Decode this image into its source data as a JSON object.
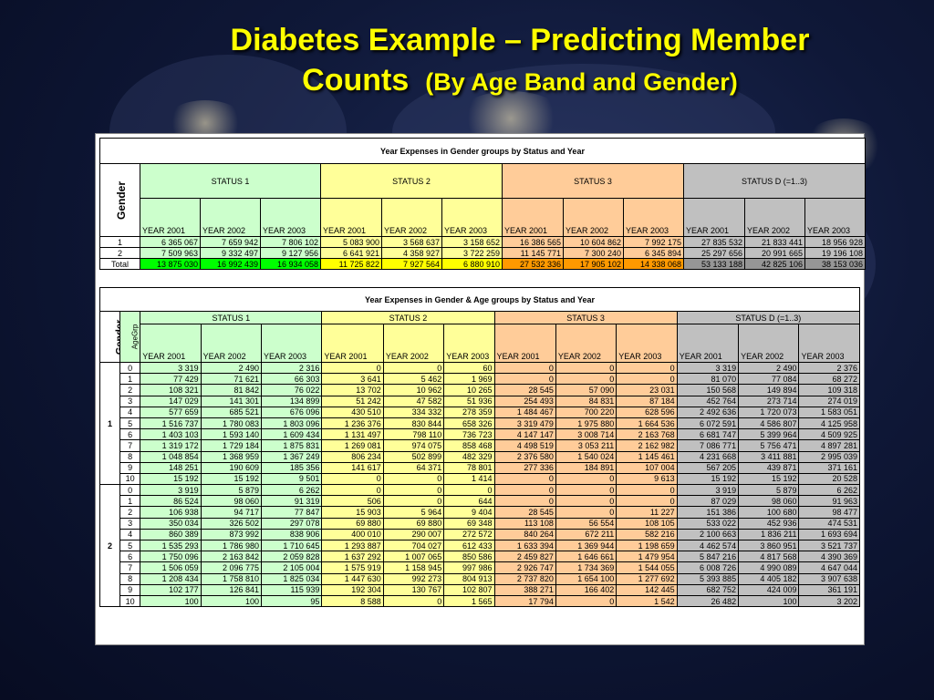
{
  "slide": {
    "title_line1": "Diabetes Example – Predicting Member",
    "title_line2": "Counts",
    "title_sub": "(By Age Band and Gender)"
  },
  "colors": {
    "title": "#ffff00",
    "status1": "#ccffcc",
    "status2": "#ffff99",
    "status3": "#ffcc99",
    "status_d": "#c0c0c0"
  },
  "table1": {
    "title": "Year Expenses in Gender groups by Status and Year",
    "gender_label": "Gender",
    "statuses": [
      "STATUS 1",
      "STATUS 2",
      "STATUS 3",
      "STATUS D (=1..3)"
    ],
    "years": [
      "YEAR 2001",
      "YEAR 2002",
      "YEAR 2003",
      "YEAR 2001",
      "YEAR 2002",
      "YEAR 2003",
      "YEAR 2001",
      "YEAR 2002",
      "YEAR 2003",
      "YEAR 2001",
      "YEAR 2002",
      "YEAR 2003"
    ],
    "rows": [
      {
        "label": "1",
        "values": [
          "6 365 067",
          "7 659 942",
          "7 806 102",
          "5 083 900",
          "3 568 637",
          "3 158 652",
          "16 386 565",
          "10 604 862",
          "7 992 175",
          "27 835 532",
          "21 833 441",
          "18 956 928"
        ]
      },
      {
        "label": "2",
        "values": [
          "7 509 963",
          "9 332 497",
          "9 127 956",
          "6 641 921",
          "4 358 927",
          "3 722 259",
          "11 145 771",
          "7 300 240",
          "6 345 894",
          "25 297 656",
          "20 991 665",
          "19 196 108"
        ]
      },
      {
        "label": "Total",
        "values": [
          "13 875 030",
          "16 992 439",
          "16 934 058",
          "11 725 822",
          "7 927 564",
          "6 880 910",
          "27 532 336",
          "17 905 102",
          "14 338 068",
          "53 133 188",
          "42 825 106",
          "38 153 036"
        ]
      }
    ]
  },
  "table2": {
    "title": "Year Expenses in Gender & Age groups by Status and Year",
    "gender_label": "Gender",
    "agegrp_label": "AgeGrp",
    "statuses": [
      "STATUS 1",
      "STATUS 2",
      "STATUS 3",
      "STATUS D (=1..3)"
    ],
    "years": [
      "YEAR 2001",
      "YEAR 2002",
      "YEAR 2003",
      "YEAR 2001",
      "YEAR 2002",
      "YEAR 2003",
      "YEAR 2001",
      "YEAR 2002",
      "YEAR 2003",
      "YEAR 2001",
      "YEAR 2002",
      "YEAR 2003"
    ],
    "groups": [
      {
        "gender": "1",
        "rows": [
          {
            "age": "0",
            "values": [
              "3 319",
              "2 490",
              "2 316",
              "0",
              "0",
              "60",
              "0",
              "0",
              "0",
              "3 319",
              "2 490",
              "2 376"
            ]
          },
          {
            "age": "1",
            "values": [
              "77 429",
              "71 621",
              "66 303",
              "3 641",
              "5 462",
              "1 969",
              "0",
              "0",
              "0",
              "81 070",
              "77 084",
              "68 272"
            ]
          },
          {
            "age": "2",
            "values": [
              "108 321",
              "81 842",
              "76 022",
              "13 702",
              "10 962",
              "10 265",
              "28 545",
              "57 090",
              "23 031",
              "150 568",
              "149 894",
              "109 318"
            ]
          },
          {
            "age": "3",
            "values": [
              "147 029",
              "141 301",
              "134 899",
              "51 242",
              "47 582",
              "51 936",
              "254 493",
              "84 831",
              "87 184",
              "452 764",
              "273 714",
              "274 019"
            ]
          },
          {
            "age": "4",
            "values": [
              "577 659",
              "685 521",
              "676 096",
              "430 510",
              "334 332",
              "278 359",
              "1 484 467",
              "700 220",
              "628 596",
              "2 492 636",
              "1 720 073",
              "1 583 051"
            ]
          },
          {
            "age": "5",
            "values": [
              "1 516 737",
              "1 780 083",
              "1 803 096",
              "1 236 376",
              "830 844",
              "658 326",
              "3 319 479",
              "1 975 880",
              "1 664 536",
              "6 072 591",
              "4 586 807",
              "4 125 958"
            ]
          },
          {
            "age": "6",
            "values": [
              "1 403 103",
              "1 593 140",
              "1 609 434",
              "1 131 497",
              "798 110",
              "736 723",
              "4 147 147",
              "3 008 714",
              "2 163 768",
              "6 681 747",
              "5 399 964",
              "4 509 925"
            ]
          },
          {
            "age": "7",
            "values": [
              "1 319 172",
              "1 729 184",
              "1 875 831",
              "1 269 081",
              "974 075",
              "858 468",
              "4 498 519",
              "3 053 211",
              "2 162 982",
              "7 086 771",
              "5 756 471",
              "4 897 281"
            ]
          },
          {
            "age": "8",
            "values": [
              "1 048 854",
              "1 368 959",
              "1 367 249",
              "806 234",
              "502 899",
              "482 329",
              "2 376 580",
              "1 540 024",
              "1 145 461",
              "4 231 668",
              "3 411 881",
              "2 995 039"
            ]
          },
          {
            "age": "9",
            "values": [
              "148 251",
              "190 609",
              "185 356",
              "141 617",
              "64 371",
              "78 801",
              "277 336",
              "184 891",
              "107 004",
              "567 205",
              "439 871",
              "371 161"
            ]
          },
          {
            "age": "10",
            "values": [
              "15 192",
              "15 192",
              "9 501",
              "0",
              "0",
              "1 414",
              "0",
              "0",
              "9 613",
              "15 192",
              "15 192",
              "20 528"
            ]
          }
        ]
      },
      {
        "gender": "2",
        "rows": [
          {
            "age": "0",
            "values": [
              "3 919",
              "5 879",
              "6 262",
              "0",
              "0",
              "0",
              "0",
              "0",
              "0",
              "3 919",
              "5 879",
              "6 262"
            ]
          },
          {
            "age": "1",
            "values": [
              "86 524",
              "98 060",
              "91 319",
              "506",
              "0",
              "644",
              "0",
              "0",
              "0",
              "87 029",
              "98 060",
              "91 963"
            ]
          },
          {
            "age": "2",
            "values": [
              "106 938",
              "94 717",
              "77 847",
              "15 903",
              "5 964",
              "9 404",
              "28 545",
              "0",
              "11 227",
              "151 386",
              "100 680",
              "98 477"
            ]
          },
          {
            "age": "3",
            "values": [
              "350 034",
              "326 502",
              "297 078",
              "69 880",
              "69 880",
              "69 348",
              "113 108",
              "56 554",
              "108 105",
              "533 022",
              "452 936",
              "474 531"
            ]
          },
          {
            "age": "4",
            "values": [
              "860 389",
              "873 992",
              "838 906",
              "400 010",
              "290 007",
              "272 572",
              "840 264",
              "672 211",
              "582 216",
              "2 100 663",
              "1 836 211",
              "1 693 694"
            ]
          },
          {
            "age": "5",
            "values": [
              "1 535 293",
              "1 786 980",
              "1 710 645",
              "1 293 887",
              "704 027",
              "612 433",
              "1 633 394",
              "1 369 944",
              "1 198 659",
              "4 462 574",
              "3 860 951",
              "3 521 737"
            ]
          },
          {
            "age": "6",
            "values": [
              "1 750 096",
              "2 163 842",
              "2 059 828",
              "1 637 292",
              "1 007 065",
              "850 586",
              "2 459 827",
              "1 646 661",
              "1 479 954",
              "5 847 216",
              "4 817 568",
              "4 390 369"
            ]
          },
          {
            "age": "7",
            "values": [
              "1 506 059",
              "2 096 775",
              "2 105 004",
              "1 575 919",
              "1 158 945",
              "997 986",
              "2 926 747",
              "1 734 369",
              "1 544 055",
              "6 008 726",
              "4 990 089",
              "4 647 044"
            ]
          },
          {
            "age": "8",
            "values": [
              "1 208 434",
              "1 758 810",
              "1 825 034",
              "1 447 630",
              "992 273",
              "804 913",
              "2 737 820",
              "1 654 100",
              "1 277 692",
              "5 393 885",
              "4 405 182",
              "3 907 638"
            ]
          },
          {
            "age": "9",
            "values": [
              "102 177",
              "126 841",
              "115 939",
              "192 304",
              "130 767",
              "102 807",
              "388 271",
              "166 402",
              "142 445",
              "682 752",
              "424 009",
              "361 191"
            ]
          },
          {
            "age": "10",
            "values": [
              "100",
              "100",
              "95",
              "8 588",
              "0",
              "1 565",
              "17 794",
              "0",
              "1 542",
              "26 482",
              "100",
              "3 202"
            ]
          }
        ]
      }
    ]
  }
}
